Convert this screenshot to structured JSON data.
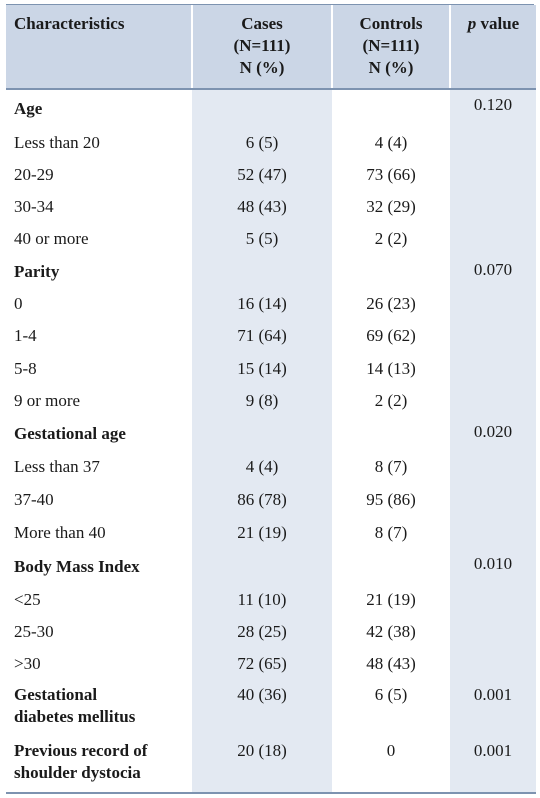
{
  "header": {
    "characteristics": "Characteristics",
    "cases_l1": "Cases",
    "cases_l2": "(N=111)",
    "cases_l3": "N (%)",
    "controls_l1": "Controls",
    "controls_l2": "(N=111)",
    "controls_l3": "N (%)",
    "p_italic": "p",
    "p_rest": " value"
  },
  "rows": [
    {
      "label": "Age",
      "cases": "",
      "controls": "",
      "p": "0.120"
    },
    {
      "label": "Less than 20",
      "cases": "6 (5)",
      "controls": "4 (4)",
      "p": ""
    },
    {
      "label": "20-29",
      "cases": "52 (47)",
      "controls": "73 (66)",
      "p": ""
    },
    {
      "label": "30-34",
      "cases": "48 (43)",
      "controls": "32 (29)",
      "p": ""
    },
    {
      "label": "40 or more",
      "cases": "5 (5)",
      "controls": "2 (2)",
      "p": ""
    },
    {
      "label": "Parity",
      "cases": "",
      "controls": "",
      "p": "0.070"
    },
    {
      "label": "0",
      "cases": "16 (14)",
      "controls": "26 (23)",
      "p": ""
    },
    {
      "label": "1-4",
      "cases": "71 (64)",
      "controls": "69 (62)",
      "p": ""
    },
    {
      "label": "5-8",
      "cases": "15 (14)",
      "controls": "14 (13)",
      "p": ""
    },
    {
      "label": "9 or more",
      "cases": "9 (8)",
      "controls": "2 (2)",
      "p": ""
    },
    {
      "label": "Gestational age",
      "cases": "",
      "controls": "",
      "p": "0.020"
    },
    {
      "label": "Less than 37",
      "cases": "4 (4)",
      "controls": "8 (7)",
      "p": ""
    },
    {
      "label": "37-40",
      "cases": "86 (78)",
      "controls": "95 (86)",
      "p": ""
    },
    {
      "label": "More than 40",
      "cases": "21 (19)",
      "controls": "8 (7)",
      "p": ""
    },
    {
      "label": "Body Mass Index",
      "cases": "",
      "controls": "",
      "p": "0.010"
    },
    {
      "label": "<25",
      "cases": "11 (10)",
      "controls": "21 (19)",
      "p": ""
    },
    {
      "label": "25-30",
      "cases": "28 (25)",
      "controls": "42 (38)",
      "p": ""
    },
    {
      "label": ">30",
      "cases": "72 (65)",
      "controls": "48 (43)",
      "p": ""
    },
    {
      "label": "Gestational",
      "label2": "diabetes mellitus",
      "cases": "40 (36)",
      "controls": "6 (5)",
      "p": "0.001"
    },
    {
      "label": "Previous record of",
      "label2": "shoulder dystocia",
      "cases": "20 (18)",
      "controls": "0",
      "p": "0.001"
    }
  ]
}
